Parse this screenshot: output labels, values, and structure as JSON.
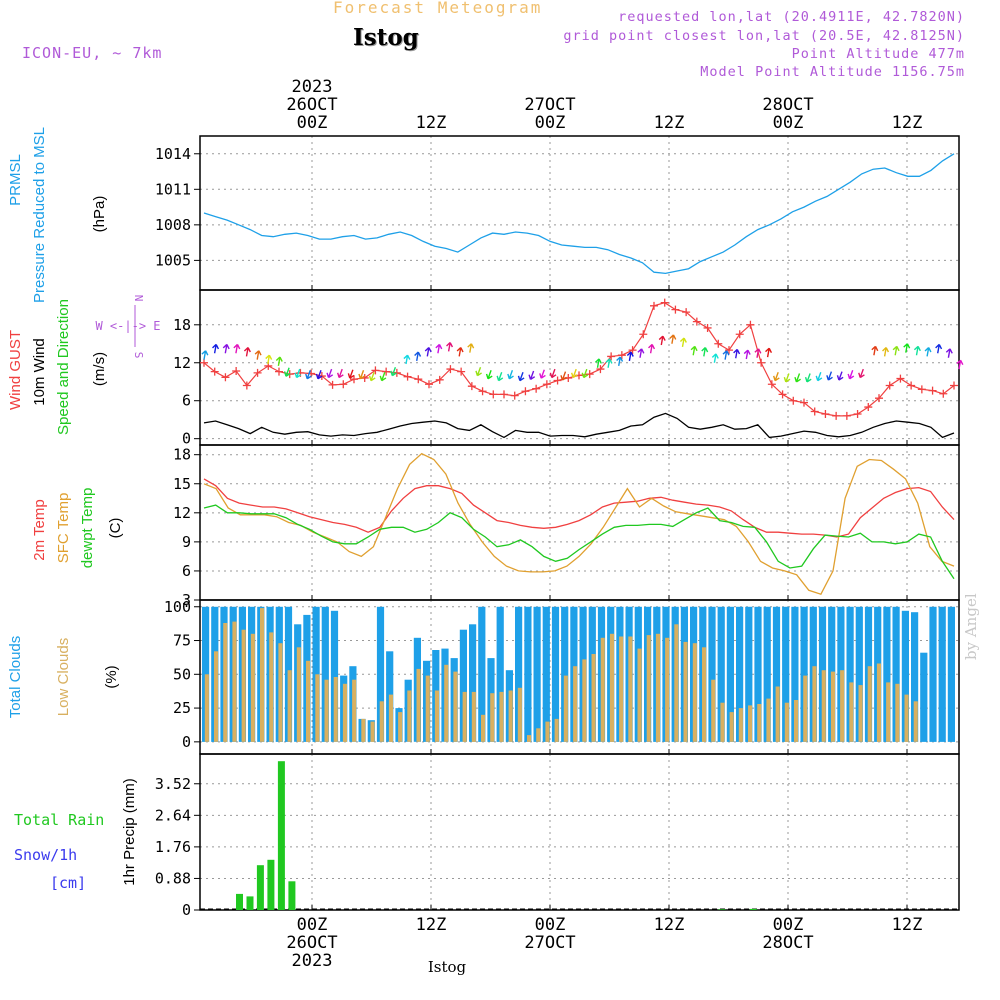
{
  "header": {
    "subtitle": "Forecast Meteogram",
    "station": "Istog",
    "model": "ICON-EU, ~ 7km",
    "meta_lines": [
      "requested lon,lat (20.4911E, 42.7820N)",
      "grid point closest lon,lat (20.5E, 42.8125N)",
      "Point Altitude 477m",
      "Model Point Altitude 1156.75m"
    ],
    "bottom_label": "Istog",
    "watermark": "by Angel"
  },
  "time_axis": {
    "x_unit": "hours from 2023-10-25 12Z (hourly steps)",
    "hours": 64,
    "ticks": [
      {
        "hour": 12,
        "label": "00Z",
        "day": "26OCT",
        "year": "2023"
      },
      {
        "hour": 24,
        "label": "12Z"
      },
      {
        "hour": 36,
        "label": "00Z",
        "day": "27OCT"
      },
      {
        "hour": 48,
        "label": "12Z"
      },
      {
        "hour": 60,
        "label": "00Z",
        "day": "28OCT"
      },
      {
        "hour": 72,
        "label": "12Z"
      }
    ]
  },
  "colors": {
    "pressure": "#1ea0e8",
    "gust": "#f04040",
    "wind": "#000000",
    "temp2m": "#f04040",
    "sfc": "#e0a030",
    "dewpt": "#20c820",
    "total_cloud": "#1ea0e8",
    "low_cloud": "#d8b060",
    "rain": "#20c820",
    "snow": "#3a3aee",
    "compass": "#b05ad8"
  },
  "chart_data": [
    {
      "type": "line",
      "title": "PRMSL Pressure Reduced to MSL",
      "ylabel": "(hPa)",
      "yticks": [
        1005,
        1008,
        1011,
        1014
      ],
      "ylim": [
        1002.5,
        1015.5
      ],
      "series": [
        {
          "name": "PRMSL Pressure Reduced to MSL",
          "values": [
            1009.0,
            1008.7,
            1008.4,
            1008.0,
            1007.6,
            1007.1,
            1007.0,
            1007.2,
            1007.3,
            1007.1,
            1006.8,
            1006.8,
            1007.0,
            1007.1,
            1006.8,
            1006.9,
            1007.2,
            1007.4,
            1007.1,
            1006.6,
            1006.2,
            1006.0,
            1005.7,
            1006.3,
            1006.9,
            1007.3,
            1007.2,
            1007.4,
            1007.3,
            1007.1,
            1006.6,
            1006.3,
            1006.2,
            1006.1,
            1006.1,
            1005.9,
            1005.5,
            1005.2,
            1004.8,
            1004.0,
            1003.9,
            1004.1,
            1004.3,
            1004.9,
            1005.3,
            1005.7,
            1006.3,
            1007.0,
            1007.6,
            1008.0,
            1008.5,
            1009.1,
            1009.5,
            1010.0,
            1010.4,
            1011.0,
            1011.6,
            1012.3,
            1012.7,
            1012.8,
            1012.4,
            1012.1,
            1012.1,
            1012.6,
            1013.4,
            1014.0
          ]
        }
      ]
    },
    {
      "type": "line",
      "title": "Wind GUST / 10m Wind Speed and Direction",
      "ylabel": "(m/s)",
      "yticks": [
        0,
        6,
        12,
        18
      ],
      "ylim": [
        -1,
        23.5
      ],
      "compass": {
        "n": "N",
        "s": "S",
        "w": "W",
        "e": "E",
        "row": "W <-|-> E"
      },
      "series": [
        {
          "name": "Wind GUST",
          "values": [
            12.0,
            10.6,
            9.7,
            10.7,
            8.4,
            10.4,
            11.5,
            10.6,
            10.2,
            10.4,
            10.3,
            9.9,
            8.5,
            8.6,
            9.4,
            9.6,
            10.8,
            10.6,
            10.4,
            9.8,
            9.4,
            8.6,
            9.3,
            11.0,
            10.6,
            8.3,
            7.5,
            7.0,
            7.0,
            6.8,
            7.5,
            7.9,
            8.6,
            9.2,
            9.6,
            10.0,
            10.2,
            11.0,
            13.0,
            13.2,
            14.0,
            16.5,
            21.0,
            21.5,
            20.4,
            20.0,
            18.5,
            17.5,
            15.0,
            14.0,
            16.5,
            18.0,
            12.0,
            8.6,
            7.0,
            6.0,
            5.7,
            4.3,
            3.9,
            3.6,
            3.6,
            3.9,
            5.0,
            6.4,
            8.4,
            9.5,
            8.4,
            7.8,
            7.6,
            7.1,
            8.4
          ]
        },
        {
          "name": "10m Wind",
          "values": [
            2.5,
            2.8,
            2.2,
            1.6,
            0.8,
            1.8,
            1.0,
            0.7,
            1.0,
            1.1,
            0.6,
            0.4,
            0.6,
            0.5,
            0.8,
            1.0,
            1.5,
            2.0,
            2.4,
            2.6,
            2.8,
            2.5,
            1.6,
            1.3,
            2.2,
            1.1,
            0.2,
            1.3,
            1.0,
            1.0,
            0.4,
            0.5,
            0.5,
            0.3,
            0.7,
            1.0,
            1.3,
            2.0,
            2.2,
            3.4,
            4.0,
            3.2,
            1.8,
            1.5,
            1.8,
            2.2,
            1.5,
            1.6,
            2.2,
            0.2,
            0.4,
            0.8,
            1.2,
            1.0,
            0.5,
            0.3,
            0.5,
            1.0,
            1.8,
            2.4,
            2.8,
            2.6,
            2.4,
            1.8,
            0.2,
            0.9
          ]
        },
        {
          "name": "Speed and Direction",
          "values": [
            12.5,
            13.5,
            13.5,
            13.5,
            13.0,
            12.5,
            11.8,
            11.5,
            11.2,
            11.0,
            10.8,
            10.8,
            11.0,
            11.0,
            10.9,
            10.8,
            10.5,
            10.5,
            11.3,
            11.8,
            12.3,
            13.0,
            13.5,
            13.8,
            13.0,
            13.6,
            11.3,
            10.8,
            10.5,
            10.8,
            10.5,
            10.7,
            10.9,
            11.0,
            10.6,
            11.0,
            11.0,
            11.2,
            11.2,
            11.5,
            12.3,
            12.8,
            13.5,
            14.8,
            15.0,
            14.5,
            13.2,
            13.0,
            12.0,
            12.5,
            12.7,
            12.6,
            12.8,
            12.9,
            10.5,
            10.3,
            10.3,
            10.3,
            10.5,
            10.6,
            10.6,
            10.8,
            11.0,
            13.2,
            13.0,
            13.2,
            13.6,
            13.2,
            13.0,
            13.5,
            12.8,
            11.0
          ]
        }
      ]
    },
    {
      "type": "line",
      "title": "2m Temp / SFC Temp / dewpt Temp",
      "ylabel": "(C)",
      "yticks": [
        3,
        6,
        9,
        12,
        15,
        18
      ],
      "ylim": [
        3,
        19
      ],
      "series": [
        {
          "name": "2m Temp",
          "values": [
            15.5,
            14.8,
            13.5,
            13.0,
            12.8,
            12.6,
            12.6,
            12.4,
            12.0,
            11.6,
            11.3,
            11.0,
            10.8,
            10.5,
            10.0,
            10.5,
            12.2,
            13.5,
            14.5,
            14.8,
            14.8,
            14.5,
            14.0,
            12.8,
            12.0,
            11.2,
            11.0,
            10.7,
            10.5,
            10.4,
            10.5,
            10.8,
            11.2,
            11.8,
            12.6,
            13.0,
            13.1,
            13.2,
            13.5,
            13.6,
            13.3,
            13.1,
            12.9,
            12.8,
            12.6,
            12.2,
            11.3,
            10.5,
            10.0,
            10.0,
            9.9,
            9.8,
            9.8,
            9.7,
            9.5,
            9.8,
            11.5,
            12.5,
            13.5,
            14.1,
            14.5,
            14.6,
            14.2,
            12.6,
            11.3
          ]
        },
        {
          "name": "SFC Temp",
          "values": [
            15.0,
            14.5,
            12.5,
            11.8,
            11.8,
            11.8,
            11.6,
            11.0,
            10.7,
            10.0,
            9.5,
            9.0,
            8.0,
            7.5,
            8.5,
            11.5,
            14.5,
            17.0,
            18.1,
            17.5,
            16.0,
            13.0,
            10.8,
            9.0,
            7.5,
            6.5,
            6.0,
            5.9,
            5.9,
            6.0,
            6.5,
            7.5,
            8.8,
            10.5,
            12.5,
            14.5,
            12.6,
            13.5,
            12.7,
            12.1,
            11.9,
            11.7,
            11.5,
            11.3,
            10.6,
            9.0,
            7.0,
            6.3,
            6.0,
            5.6,
            4.0,
            3.6,
            6.0,
            13.5,
            16.8,
            17.5,
            17.4,
            16.5,
            15.5,
            13.0,
            8.5,
            7.0,
            6.5
          ]
        },
        {
          "name": "dewpt Temp",
          "values": [
            12.5,
            12.8,
            12.0,
            12.0,
            11.9,
            11.9,
            11.9,
            11.5,
            10.8,
            10.3,
            9.6,
            9.0,
            8.8,
            8.8,
            9.5,
            10.3,
            10.5,
            10.5,
            10.0,
            10.3,
            11.0,
            12.0,
            11.5,
            10.3,
            9.5,
            8.5,
            8.7,
            9.2,
            8.5,
            7.5,
            7.0,
            7.3,
            8.2,
            9.0,
            9.8,
            10.5,
            10.7,
            10.7,
            10.8,
            10.8,
            10.6,
            11.3,
            12.0,
            12.5,
            11.2,
            11.0,
            10.6,
            10.5,
            9.0,
            7.0,
            6.3,
            6.5,
            8.3,
            9.7,
            9.6,
            9.5,
            9.9,
            9.0,
            9.0,
            8.8,
            9.0,
            9.8,
            9.5,
            7.0,
            5.2
          ]
        }
      ]
    },
    {
      "type": "bar",
      "title": "Total Clouds / Low Clouds",
      "ylabel": "(%)",
      "yticks": [
        0,
        25,
        50,
        75,
        100
      ],
      "ylim": [
        0,
        100
      ],
      "series": [
        {
          "name": "Total Clouds",
          "values": [
            100,
            100,
            100,
            100,
            100,
            100,
            100,
            100,
            100,
            100,
            87,
            94,
            100,
            100,
            97,
            49,
            56,
            17,
            16,
            100,
            67,
            25,
            46,
            77,
            60,
            68,
            69,
            62,
            83,
            87,
            100,
            62,
            100,
            53,
            100,
            100,
            100,
            100,
            100,
            100,
            100,
            100,
            100,
            100,
            100,
            100,
            100,
            100,
            100,
            100,
            100,
            100,
            100,
            100,
            100,
            100,
            100,
            100,
            100,
            100,
            100,
            100,
            100,
            100,
            100,
            100,
            100,
            100,
            100,
            100,
            100,
            100,
            100,
            100,
            100,
            100,
            97,
            96,
            66,
            100,
            100,
            100
          ]
        },
        {
          "name": "Low Clouds",
          "values": [
            50,
            67,
            88,
            89,
            83,
            80,
            99,
            81,
            73,
            53,
            70,
            60,
            50,
            46,
            48,
            43,
            46,
            17,
            15,
            30,
            35,
            22,
            38,
            54,
            49,
            38,
            57,
            52,
            37,
            37,
            20,
            36,
            37,
            38,
            40,
            5,
            10,
            15,
            17,
            49,
            56,
            61,
            65,
            77,
            80,
            78,
            78,
            69,
            79,
            80,
            77,
            87,
            74,
            73,
            70,
            46,
            29,
            22,
            25,
            27,
            28,
            32,
            41,
            29,
            31,
            49,
            56,
            53,
            52,
            53,
            44,
            42,
            56,
            58,
            44,
            43,
            35,
            30,
            0,
            0,
            0,
            0
          ]
        }
      ]
    },
    {
      "type": "bar",
      "title": "1hr Precip (mm)",
      "ylabel": "1hr Precip (mm)",
      "legend_left": {
        "rain": "Total  Rain",
        "snow": "Snow/1h",
        "unit": "[cm]"
      },
      "yticks": [
        0,
        0.88,
        1.76,
        2.64,
        3.52
      ],
      "ylabels": [
        "0",
        "0.88",
        "1.76",
        "2.64",
        "3.52"
      ],
      "ylim": [
        0,
        4.2
      ],
      "series": [
        {
          "name": "Total Rain",
          "values": [
            0,
            0,
            0.45,
            0.38,
            1.25,
            1.4,
            4.15,
            0.8,
            0,
            0,
            0,
            0,
            0,
            0,
            0,
            0,
            0,
            0,
            0,
            0,
            0,
            0,
            0,
            0,
            0,
            0,
            0,
            0,
            0,
            0,
            0,
            0,
            0,
            0,
            0,
            0,
            0,
            0,
            0,
            0,
            0,
            0,
            0,
            0,
            0,
            0,
            0,
            0,
            0.02,
            0,
            0,
            0.03,
            0,
            0,
            0,
            0,
            0,
            0,
            0,
            0,
            0,
            0,
            0,
            0,
            0,
            0,
            0,
            0,
            0,
            0,
            0,
            0
          ]
        }
      ]
    }
  ]
}
